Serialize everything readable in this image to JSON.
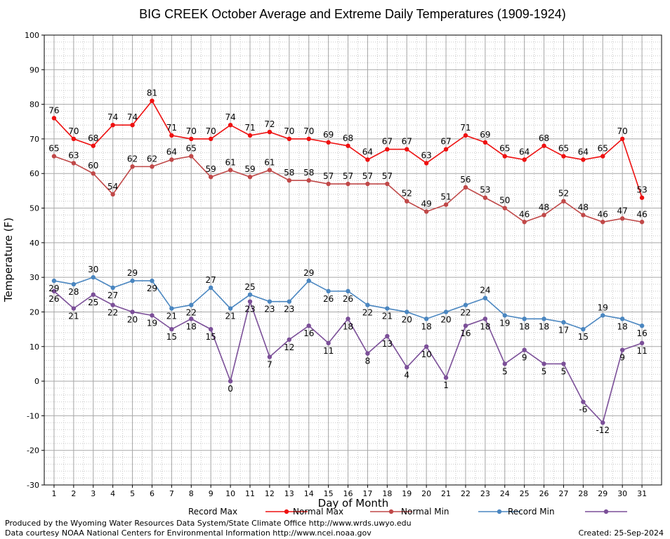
{
  "chart_data": {
    "type": "line",
    "title": "BIG CREEK October Average and Extreme Daily Temperatures (1909-1924)",
    "xlabel": "Day of Month",
    "ylabel": "Temperature (F)",
    "ylim": [
      -30,
      100
    ],
    "xlim": [
      1,
      31
    ],
    "yticks": [
      -30,
      -20,
      -10,
      0,
      10,
      20,
      30,
      40,
      50,
      60,
      70,
      80,
      90,
      100
    ],
    "x": [
      1,
      2,
      3,
      4,
      5,
      6,
      7,
      8,
      9,
      10,
      11,
      12,
      13,
      14,
      15,
      16,
      17,
      18,
      19,
      20,
      21,
      22,
      23,
      24,
      25,
      26,
      27,
      28,
      29,
      30,
      31
    ],
    "grid": true,
    "legend_position": "bottom",
    "series": [
      {
        "name": "Record Max",
        "color": "#ee1111",
        "label_pos": "above",
        "values": [
          76,
          70,
          68,
          74,
          74,
          81,
          71,
          70,
          70,
          74,
          71,
          72,
          70,
          70,
          69,
          68,
          64,
          67,
          67,
          63,
          67,
          71,
          69,
          65,
          64,
          68,
          65,
          64,
          65,
          70,
          53
        ]
      },
      {
        "name": "Normal Max",
        "color": "#c04848",
        "label_pos": "above",
        "values": [
          65,
          63,
          60,
          54,
          62,
          62,
          64,
          65,
          59,
          61,
          59,
          61,
          58,
          58,
          57,
          57,
          57,
          57,
          52,
          49,
          51,
          56,
          53,
          50,
          46,
          48,
          52,
          48,
          46,
          47,
          46
        ]
      },
      {
        "name": "Normal Min",
        "color": "#4a86c0",
        "label_pos": "mixed",
        "values": [
          29,
          28,
          30,
          27,
          29,
          29,
          21,
          22,
          27,
          21,
          25,
          23,
          23,
          29,
          26,
          26,
          22,
          21,
          20,
          18,
          20,
          22,
          24,
          19,
          18,
          18,
          17,
          15,
          19,
          18,
          16
        ]
      },
      {
        "name": "Record Min",
        "color": "#7b4f98",
        "label_pos": "below",
        "values": [
          26,
          21,
          25,
          22,
          20,
          19,
          15,
          18,
          15,
          0,
          23,
          7,
          12,
          16,
          11,
          18,
          8,
          13,
          4,
          10,
          1,
          16,
          18,
          5,
          9,
          5,
          5,
          -6,
          -12,
          9,
          11
        ]
      }
    ]
  },
  "footer": {
    "credit1": "Produced by the Wyoming Water Resources Data System/State Climate Office http://www.wrds.uwyo.edu",
    "credit2": "Data courtesy NOAA National Centers for Environmental Information http://www.ncei.noaa.gov",
    "created": "Created:  25-Sep-2024"
  }
}
